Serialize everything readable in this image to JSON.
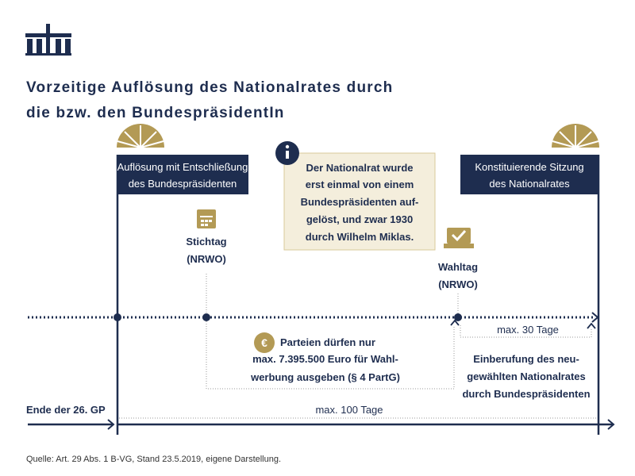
{
  "title": [
    "Vorzeitige Auflösung des Nationalrates durch",
    "die bzw. den BundespräsidentIn"
  ],
  "left_box": [
    "Auflösung mit Entschließung",
    "des Bundespräsidenten"
  ],
  "info_box": [
    "Der Nationalrat wurde",
    "erst einmal von einem",
    "Bundespräsidenten auf-",
    "gelöst, und zwar 1930",
    "durch Wilhelm Miklas."
  ],
  "right_box": [
    "Konstituierende Sitzung",
    "des Nationalrates"
  ],
  "stichtag": [
    "Stichtag",
    "(NRWO)"
  ],
  "wahltag": [
    "Wahltag",
    "(NRWO)"
  ],
  "parteien": [
    "Parteien dürfen nur",
    "max. 7.395.500 Euro für Wahl-",
    "werbung ausgeben (§ 4 PartG)"
  ],
  "max_30": "max. 30 Tage",
  "einberufung": [
    "Einberufung des neu-",
    "gewählten Nationalrates",
    "durch Bundespräsidenten"
  ],
  "ende": "Ende der 26. GP",
  "max_100": "max. 100 Tage",
  "source": "Quelle: Art. 29 Abs. 1 B-VG, Stand 23.5.2019, eigene Darstellung."
}
